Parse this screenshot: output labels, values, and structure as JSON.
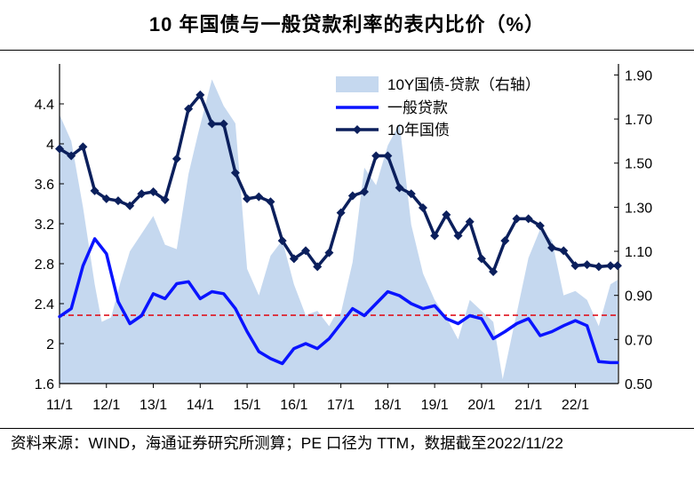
{
  "title": "10 年国债与一般贷款利率的表内比价（%）",
  "source": "资料来源：WIND，海通证券研究所测算；PE 口径为 TTM，数据截至2022/11/22",
  "colors": {
    "spread": "#c5d8ef",
    "loan": "#0a14ff",
    "bond": "#0b1f5c",
    "refline": "#e0141e"
  },
  "chart_data": {
    "type": "line",
    "title": "10 年国债与一般贷款利率的表内比价（%）",
    "x_tick_labels": [
      "11/1",
      "12/1",
      "13/1",
      "14/1",
      "15/1",
      "16/1",
      "17/1",
      "18/1",
      "19/1",
      "20/1",
      "21/1",
      "22/1"
    ],
    "left_axis": {
      "ylim": [
        1.6,
        4.8
      ],
      "ticks": [
        "1.6",
        "2",
        "2.4",
        "2.8",
        "3.2",
        "3.6",
        "4",
        "4.4"
      ]
    },
    "right_axis": {
      "ylim": [
        0.5,
        1.95
      ],
      "ticks": [
        "0.50",
        "0.70",
        "0.90",
        "1.10",
        "1.30",
        "1.50",
        "1.70",
        "1.90"
      ]
    },
    "reference_line": {
      "axis": "right",
      "value": 0.81,
      "style": "dashed"
    },
    "legend": [
      "10Y国债-贷款（右轴）",
      "一般贷款",
      "10年国债"
    ],
    "series": [
      {
        "name": "10Y国债-贷款（右轴）",
        "axis": "right",
        "kind": "area",
        "x": [
          2011.0,
          2011.25,
          2011.5,
          2011.75,
          2011.9,
          2012.1,
          2012.3,
          2012.5,
          2012.75,
          2013.0,
          2013.25,
          2013.5,
          2013.75,
          2013.95,
          2014.25,
          2014.5,
          2014.75,
          2015.0,
          2015.25,
          2015.5,
          2015.75,
          2016.0,
          2016.25,
          2016.5,
          2016.75,
          2016.85,
          2017.0,
          2017.25,
          2017.5,
          2017.75,
          2018.0,
          2018.25,
          2018.5,
          2018.75,
          2019.0,
          2019.25,
          2019.5,
          2019.75,
          2020.0,
          2020.25,
          2020.45,
          2020.75,
          2021.0,
          2021.25,
          2021.5,
          2021.75,
          2022.0,
          2022.25,
          2022.5,
          2022.75,
          2022.9
        ],
        "values": [
          1.72,
          1.6,
          1.3,
          0.95,
          0.78,
          0.8,
          0.96,
          1.1,
          1.18,
          1.26,
          1.13,
          1.11,
          1.45,
          1.63,
          1.88,
          1.76,
          1.68,
          1.02,
          0.9,
          1.08,
          1.15,
          0.95,
          0.81,
          0.83,
          0.76,
          0.8,
          0.82,
          1.05,
          1.48,
          1.4,
          1.58,
          1.68,
          1.22,
          1.0,
          0.88,
          0.8,
          0.7,
          0.88,
          0.83,
          0.78,
          0.52,
          0.82,
          1.07,
          1.2,
          1.15,
          0.9,
          0.92,
          0.88,
          0.76,
          0.95,
          0.97
        ]
      },
      {
        "name": "一般贷款",
        "axis": "left",
        "kind": "line",
        "x": [
          2011.0,
          2011.25,
          2011.5,
          2011.75,
          2012.0,
          2012.25,
          2012.5,
          2012.75,
          2013.0,
          2013.25,
          2013.5,
          2013.75,
          2014.0,
          2014.25,
          2014.5,
          2014.75,
          2015.0,
          2015.25,
          2015.5,
          2015.75,
          2016.0,
          2016.25,
          2016.5,
          2016.75,
          2017.0,
          2017.25,
          2017.5,
          2017.75,
          2018.0,
          2018.25,
          2018.5,
          2018.75,
          2019.0,
          2019.25,
          2019.5,
          2019.75,
          2020.0,
          2020.25,
          2020.5,
          2020.75,
          2021.0,
          2021.25,
          2021.5,
          2021.75,
          2022.0,
          2022.25,
          2022.5,
          2022.75,
          2022.9
        ],
        "values": [
          2.27,
          2.35,
          2.78,
          3.05,
          2.9,
          2.42,
          2.2,
          2.28,
          2.5,
          2.45,
          2.6,
          2.62,
          2.45,
          2.52,
          2.5,
          2.35,
          2.12,
          1.92,
          1.85,
          1.8,
          1.95,
          2.0,
          1.95,
          2.05,
          2.2,
          2.35,
          2.28,
          2.4,
          2.52,
          2.48,
          2.4,
          2.35,
          2.38,
          2.25,
          2.2,
          2.28,
          2.25,
          2.05,
          2.12,
          2.2,
          2.25,
          2.08,
          2.12,
          2.18,
          2.23,
          2.18,
          1.82,
          1.81,
          1.81
        ]
      },
      {
        "name": "10年国债",
        "axis": "left",
        "kind": "line",
        "markers": true,
        "x": [
          2011.0,
          2011.25,
          2011.5,
          2011.75,
          2012.0,
          2012.25,
          2012.5,
          2012.75,
          2013.0,
          2013.25,
          2013.5,
          2013.75,
          2014.0,
          2014.25,
          2014.5,
          2014.75,
          2015.0,
          2015.25,
          2015.5,
          2015.75,
          2016.0,
          2016.25,
          2016.5,
          2016.75,
          2017.0,
          2017.25,
          2017.5,
          2017.75,
          2018.0,
          2018.25,
          2018.5,
          2018.75,
          2019.0,
          2019.25,
          2019.5,
          2019.75,
          2020.0,
          2020.25,
          2020.5,
          2020.75,
          2021.0,
          2021.25,
          2021.5,
          2021.75,
          2022.0,
          2022.25,
          2022.5,
          2022.75,
          2022.9
        ],
        "values": [
          3.95,
          3.88,
          3.97,
          3.53,
          3.45,
          3.43,
          3.38,
          3.5,
          3.52,
          3.44,
          3.85,
          4.35,
          4.49,
          4.2,
          4.2,
          3.71,
          3.45,
          3.47,
          3.42,
          3.03,
          2.85,
          2.93,
          2.77,
          2.91,
          3.31,
          3.48,
          3.52,
          3.88,
          3.88,
          3.56,
          3.5,
          3.36,
          3.08,
          3.29,
          3.08,
          3.22,
          2.85,
          2.72,
          3.03,
          3.25,
          3.25,
          3.18,
          2.96,
          2.93,
          2.78,
          2.79,
          2.77,
          2.78,
          2.78
        ]
      }
    ]
  }
}
